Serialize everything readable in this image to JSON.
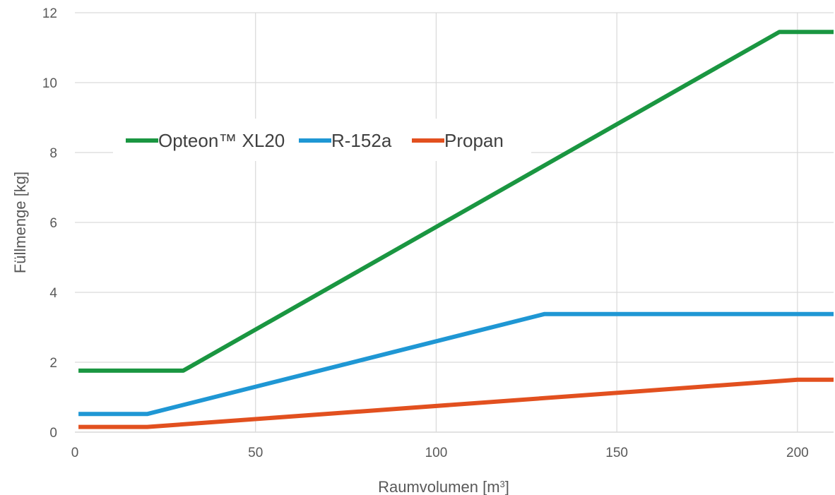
{
  "chart_data": {
    "type": "line",
    "title": "",
    "xlabel": "Raumvolumen [m",
    "xlabel_sup": "3",
    "xlabel_suffix": "]",
    "ylabel": "Füllmenge [kg]",
    "xlim": [
      0,
      210
    ],
    "ylim": [
      0,
      12
    ],
    "xticks": [
      0,
      50,
      100,
      150,
      200
    ],
    "yticks": [
      0,
      2,
      4,
      6,
      8,
      10,
      12
    ],
    "grid": true,
    "legend_position": "upper-left-inside",
    "series": [
      {
        "name": "Opteon™ XL20",
        "color": "#1a9641",
        "points": [
          [
            1,
            1.76
          ],
          [
            30,
            1.76
          ],
          [
            195,
            11.45
          ],
          [
            210,
            11.45
          ]
        ]
      },
      {
        "name": "R-152a",
        "color": "#1f97d4",
        "points": [
          [
            1,
            0.52
          ],
          [
            20,
            0.52
          ],
          [
            130,
            3.38
          ],
          [
            210,
            3.38
          ]
        ]
      },
      {
        "name": "Propan",
        "color": "#e2501f",
        "points": [
          [
            1,
            0.15
          ],
          [
            20,
            0.15
          ],
          [
            200,
            1.5
          ],
          [
            210,
            1.5
          ]
        ]
      }
    ]
  }
}
